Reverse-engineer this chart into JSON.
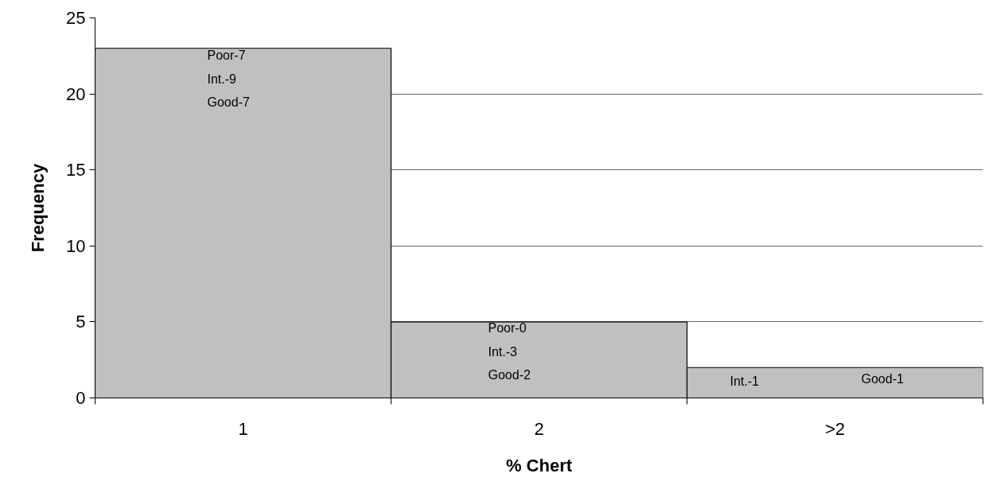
{
  "chart_data": {
    "type": "bar",
    "xlabel": "% Chert",
    "ylabel": "Frequency",
    "categories": [
      "1",
      "2",
      ">2"
    ],
    "values": [
      23,
      5,
      2
    ],
    "color": "#c0c0c0",
    "ylim": [
      0,
      25
    ],
    "yticks": [
      0,
      5,
      10,
      15,
      20,
      25
    ],
    "grid": "y",
    "annotations": [
      "Poor-7",
      "Int.-9",
      "Good-7",
      "Poor-0",
      "Int.-3",
      "Good-2",
      "Int.-1",
      "Good-1"
    ]
  }
}
